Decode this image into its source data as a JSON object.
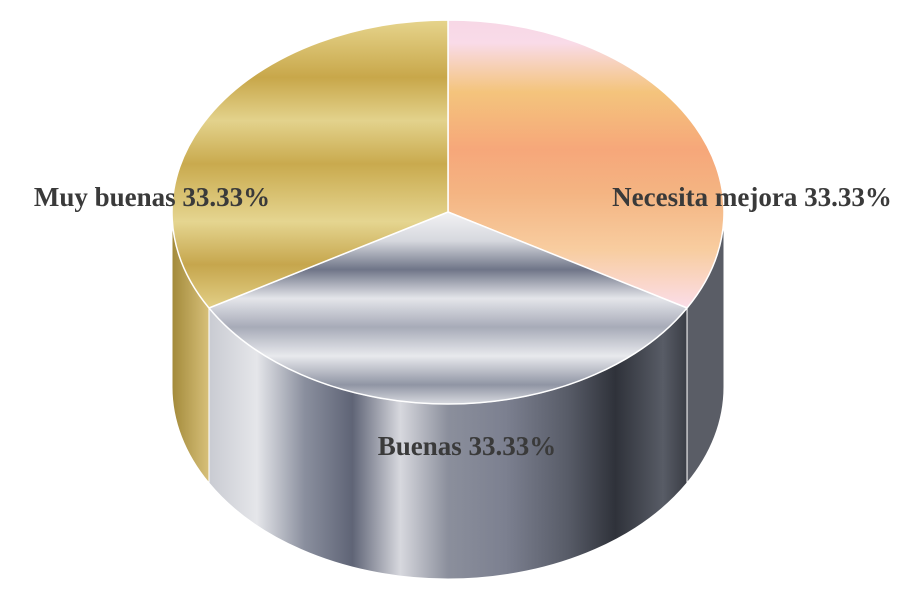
{
  "chart_data": {
    "type": "pie",
    "style": "3d",
    "title": "",
    "slices": [
      {
        "label": "Necesita mejora",
        "value": 33.33,
        "display": "Necesita mejora 33.33%"
      },
      {
        "label": "Buenas",
        "value": 33.33,
        "display": "Buenas 33.33%"
      },
      {
        "label": "Muy buenas",
        "value": 33.33,
        "display": "Muy buenas 33.33%"
      }
    ],
    "legend": "none",
    "data_labels": "category and percentage"
  }
}
